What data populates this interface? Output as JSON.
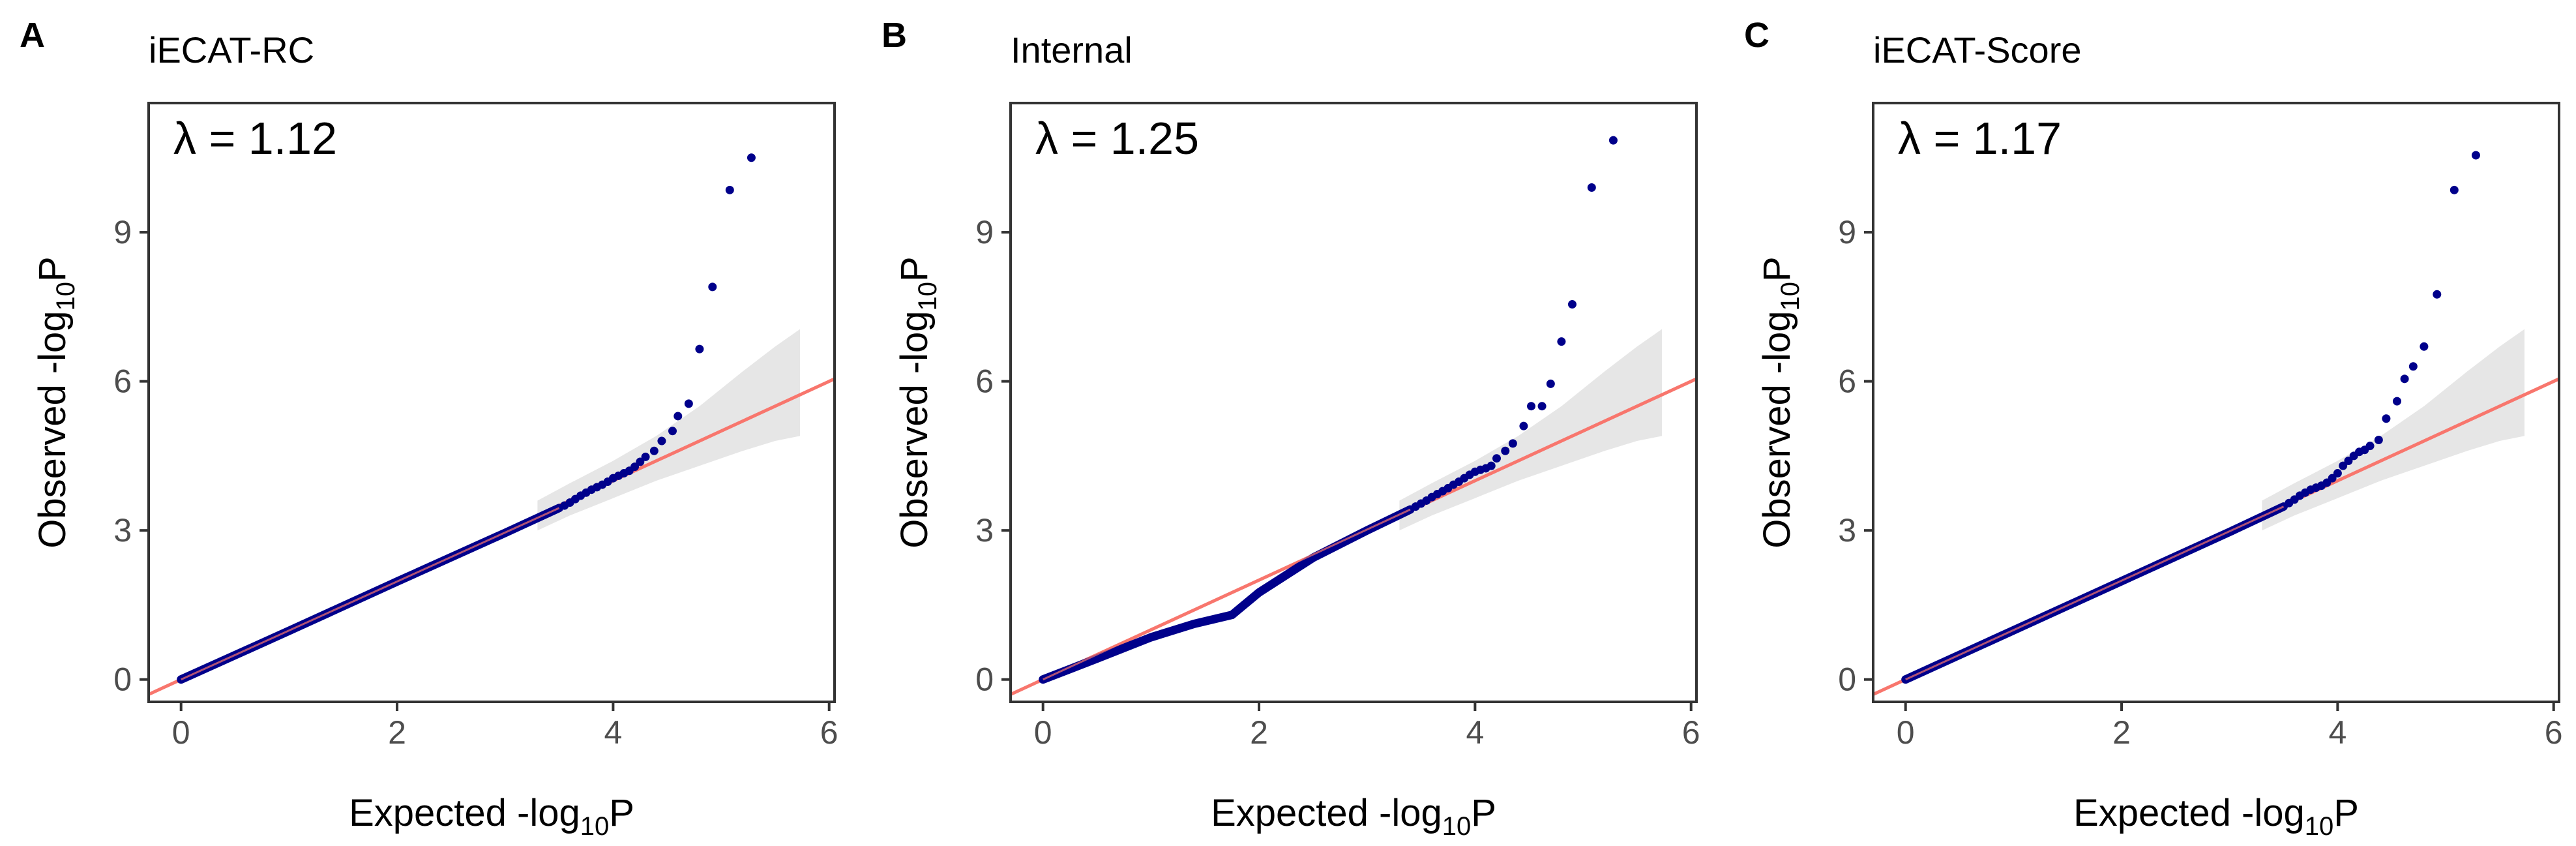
{
  "chart_data": [
    {
      "type": "scatter",
      "tag": "A",
      "title": "iECAT-RC",
      "lambda_text": "λ = 1.12",
      "xlabel": {
        "main": "Expected -log",
        "sub": "10",
        "tail": "P"
      },
      "ylabel": {
        "main": "Observed -log",
        "sub": "10",
        "tail": "P"
      },
      "xlim": [
        -0.3,
        6.05
      ],
      "ylim": [
        -0.45,
        11.6
      ],
      "xticks": [
        0,
        2,
        4,
        6
      ],
      "yticks": [
        0,
        3,
        6,
        9
      ],
      "x_tick_labels": [
        "0",
        "2",
        "4",
        "6"
      ],
      "y_tick_labels": [
        "0",
        "3",
        "6",
        "9"
      ],
      "reference_line": {
        "slope": 1,
        "intercept": 0,
        "color": "#F8766D"
      },
      "confidence_band": {
        "x": [
          3.3,
          3.6,
          4.0,
          4.4,
          4.8,
          5.2,
          5.5,
          5.73
        ],
        "lower": [
          3.0,
          3.3,
          3.65,
          4.0,
          4.3,
          4.6,
          4.8,
          4.9
        ],
        "upper": [
          3.6,
          3.95,
          4.4,
          4.9,
          5.5,
          6.2,
          6.7,
          7.05
        ],
        "color": "#e6e6e6"
      },
      "point_color": "#00008B",
      "dense_segments": [
        {
          "x": [
            0,
            1,
            2,
            3,
            3.5
          ],
          "y": [
            0,
            0.98,
            1.97,
            2.95,
            3.45
          ]
        }
      ],
      "points": {
        "x": [
          3.55,
          3.6,
          3.65,
          3.7,
          3.75,
          3.8,
          3.85,
          3.9,
          3.95,
          4.0,
          4.05,
          4.1,
          4.15,
          4.2,
          4.25,
          4.3,
          4.38,
          4.45,
          4.55,
          4.6,
          4.7,
          4.8,
          4.92,
          5.08,
          5.28
        ],
        "y": [
          3.5,
          3.56,
          3.63,
          3.7,
          3.76,
          3.82,
          3.87,
          3.92,
          3.98,
          4.05,
          4.1,
          4.15,
          4.2,
          4.28,
          4.38,
          4.48,
          4.6,
          4.8,
          5.0,
          5.3,
          5.55,
          6.65,
          7.9,
          9.85,
          10.5
        ]
      }
    },
    {
      "type": "scatter",
      "tag": "B",
      "title": "Internal",
      "lambda_text": "λ = 1.25",
      "xlabel": {
        "main": "Expected -log",
        "sub": "10",
        "tail": "P"
      },
      "ylabel": {
        "main": "Observed -log",
        "sub": "10",
        "tail": "P"
      },
      "xlim": [
        -0.3,
        6.05
      ],
      "ylim": [
        -0.45,
        11.6
      ],
      "xticks": [
        0,
        2,
        4,
        6
      ],
      "yticks": [
        0,
        3,
        6,
        9
      ],
      "x_tick_labels": [
        "0",
        "2",
        "4",
        "6"
      ],
      "y_tick_labels": [
        "0",
        "3",
        "6",
        "9"
      ],
      "reference_line": {
        "slope": 1,
        "intercept": 0,
        "color": "#F8766D"
      },
      "confidence_band": {
        "x": [
          3.3,
          3.6,
          4.0,
          4.4,
          4.8,
          5.2,
          5.5,
          5.73
        ],
        "lower": [
          3.0,
          3.3,
          3.65,
          4.0,
          4.3,
          4.6,
          4.8,
          4.9
        ],
        "upper": [
          3.6,
          3.95,
          4.4,
          4.9,
          5.5,
          6.2,
          6.7,
          7.05
        ],
        "color": "#e6e6e6"
      },
      "point_color": "#00008B",
      "dense_segments": [
        {
          "x": [
            0,
            0.5,
            1.0,
            1.4,
            1.75,
            2.0,
            2.5,
            3.0,
            3.4
          ],
          "y": [
            0,
            0.42,
            0.85,
            1.12,
            1.3,
            1.75,
            2.45,
            3.0,
            3.42
          ]
        }
      ],
      "points": {
        "x": [
          3.45,
          3.5,
          3.55,
          3.6,
          3.65,
          3.7,
          3.75,
          3.8,
          3.85,
          3.9,
          3.95,
          4.0,
          4.05,
          4.1,
          4.15,
          4.2,
          4.28,
          4.35,
          4.45,
          4.52,
          4.62,
          4.7,
          4.8,
          4.9,
          5.08,
          5.28
        ],
        "y": [
          3.48,
          3.54,
          3.6,
          3.67,
          3.73,
          3.79,
          3.85,
          3.92,
          3.98,
          4.05,
          4.12,
          4.18,
          4.22,
          4.25,
          4.3,
          4.45,
          4.6,
          4.75,
          5.1,
          5.5,
          5.5,
          5.95,
          6.8,
          7.55,
          9.9,
          10.85
        ]
      }
    },
    {
      "type": "scatter",
      "tag": "C",
      "title": "iECAT-Score",
      "lambda_text": "λ = 1.17",
      "xlabel": {
        "main": "Expected -log",
        "sub": "10",
        "tail": "P"
      },
      "ylabel": {
        "main": "Observed -log",
        "sub": "10",
        "tail": "P"
      },
      "xlim": [
        -0.3,
        6.05
      ],
      "ylim": [
        -0.45,
        11.6
      ],
      "xticks": [
        0,
        2,
        4,
        6
      ],
      "yticks": [
        0,
        3,
        6,
        9
      ],
      "x_tick_labels": [
        "0",
        "2",
        "4",
        "6"
      ],
      "y_tick_labels": [
        "0",
        "3",
        "6",
        "9"
      ],
      "reference_line": {
        "slope": 1,
        "intercept": 0,
        "color": "#F8766D"
      },
      "confidence_band": {
        "x": [
          3.3,
          3.6,
          4.0,
          4.4,
          4.8,
          5.2,
          5.5,
          5.73
        ],
        "lower": [
          3.0,
          3.3,
          3.65,
          4.0,
          4.3,
          4.6,
          4.8,
          4.9
        ],
        "upper": [
          3.6,
          3.95,
          4.4,
          4.9,
          5.5,
          6.2,
          6.7,
          7.05
        ],
        "color": "#e6e6e6"
      },
      "point_color": "#00008B",
      "dense_segments": [
        {
          "x": [
            0,
            1,
            2,
            3,
            3.5
          ],
          "y": [
            0,
            0.99,
            1.98,
            2.97,
            3.48
          ]
        }
      ],
      "points": {
        "x": [
          3.55,
          3.6,
          3.65,
          3.7,
          3.75,
          3.8,
          3.85,
          3.9,
          3.95,
          4.0,
          4.05,
          4.1,
          4.15,
          4.2,
          4.25,
          4.3,
          4.38,
          4.45,
          4.55,
          4.62,
          4.7,
          4.8,
          4.92,
          5.08,
          5.28
        ],
        "y": [
          3.55,
          3.62,
          3.7,
          3.76,
          3.82,
          3.86,
          3.9,
          3.96,
          4.05,
          4.15,
          4.3,
          4.4,
          4.5,
          4.58,
          4.62,
          4.7,
          4.82,
          5.25,
          5.6,
          6.05,
          6.3,
          6.7,
          7.75,
          9.85,
          10.55
        ]
      }
    }
  ]
}
